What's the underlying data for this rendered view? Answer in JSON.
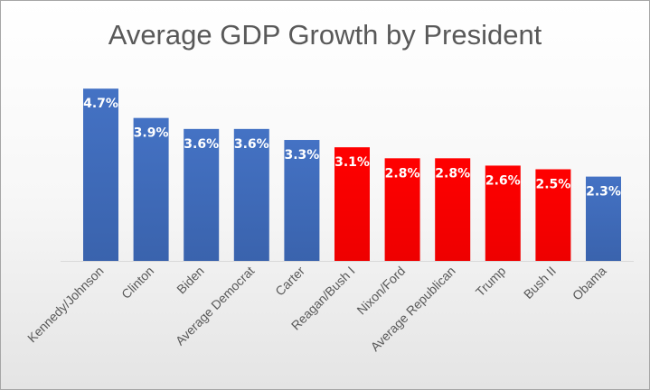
{
  "chart_data": {
    "type": "bar",
    "title": "Average GDP Growth by President",
    "xlabel": "",
    "ylabel": "",
    "ylim": [
      0,
      5
    ],
    "grid": false,
    "categories": [
      "Kennedy/Johnson",
      "Clinton",
      "Biden",
      "Average Democrat",
      "Carter",
      "Reagan/Bush I",
      "Nixon/Ford",
      "Average Republican",
      "Trump",
      "Bush II",
      "Obama"
    ],
    "values": [
      4.7,
      3.9,
      3.6,
      3.6,
      3.3,
      3.1,
      2.8,
      2.8,
      2.6,
      2.5,
      2.3
    ],
    "data_labels": [
      "4.7%",
      "3.9%",
      "3.6%",
      "3.6%",
      "3.3%",
      "3.1%",
      "2.8%",
      "2.8%",
      "2.6%",
      "2.5%",
      "2.3%"
    ],
    "party": [
      "D",
      "D",
      "D",
      "D",
      "D",
      "R",
      "R",
      "R",
      "R",
      "R",
      "D"
    ],
    "colors": {
      "D": "#4472c4",
      "R": "#ff0000"
    }
  }
}
